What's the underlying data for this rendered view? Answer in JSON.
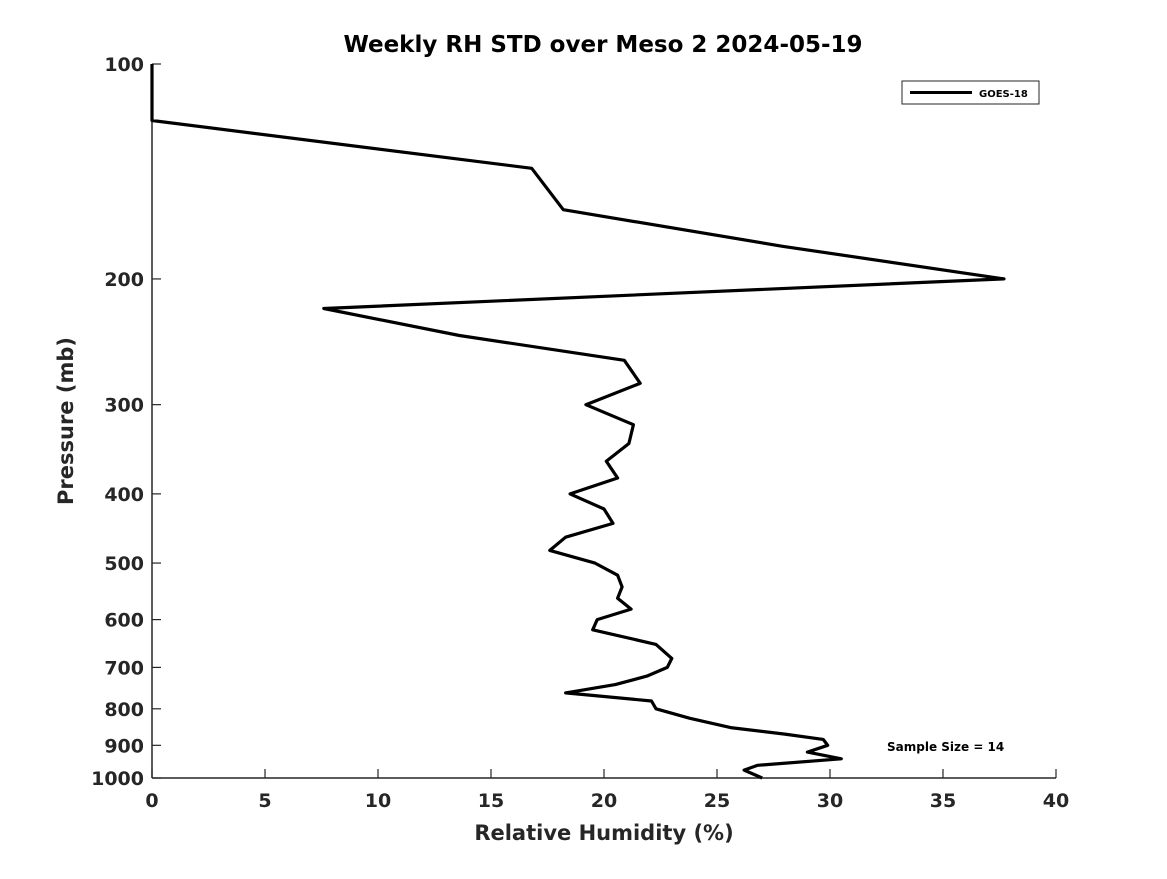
{
  "chart_data": {
    "type": "line",
    "title": "Weekly RH STD over Meso 2 2024-05-19",
    "xlabel": "Relative Humidity (%)",
    "ylabel": "Pressure (mb)",
    "xlim": [
      0,
      40
    ],
    "ylim": [
      100,
      1000
    ],
    "yscale": "log",
    "y_reversed": true,
    "grid": false,
    "xticks": [
      "0",
      "5",
      "10",
      "15",
      "20",
      "25",
      "30",
      "35",
      "40"
    ],
    "yticks": [
      "100",
      "200",
      "300",
      "400",
      "500",
      "600",
      "700",
      "800",
      "900",
      "1000"
    ],
    "legend": {
      "position": "top-right",
      "entries": [
        "GOES-18"
      ]
    },
    "annotation": "Sample Size = 14",
    "series": [
      {
        "name": "GOES-18",
        "color": "#000000",
        "points": [
          [
            0,
            100
          ],
          [
            0,
            120
          ],
          [
            16.8,
            140
          ],
          [
            18.2,
            160
          ],
          [
            27.9,
            180
          ],
          [
            37.7,
            200
          ],
          [
            7.6,
            220
          ],
          [
            13.6,
            240
          ],
          [
            20.9,
            260
          ],
          [
            21.6,
            280
          ],
          [
            19.2,
            300
          ],
          [
            21.3,
            320
          ],
          [
            21.1,
            340
          ],
          [
            20.1,
            360
          ],
          [
            20.6,
            380
          ],
          [
            18.5,
            400
          ],
          [
            20.0,
            420
          ],
          [
            20.4,
            440
          ],
          [
            18.3,
            460
          ],
          [
            17.6,
            480
          ],
          [
            19.6,
            500
          ],
          [
            20.6,
            520
          ],
          [
            20.8,
            540
          ],
          [
            20.6,
            560
          ],
          [
            21.2,
            580
          ],
          [
            19.7,
            600
          ],
          [
            19.5,
            620
          ],
          [
            22.3,
            650
          ],
          [
            23.0,
            680
          ],
          [
            22.8,
            700
          ],
          [
            21.9,
            720
          ],
          [
            20.5,
            740
          ],
          [
            18.3,
            760
          ],
          [
            22.1,
            780
          ],
          [
            22.3,
            800
          ],
          [
            23.8,
            825
          ],
          [
            25.6,
            850
          ],
          [
            28.0,
            868
          ],
          [
            29.7,
            883
          ],
          [
            29.9,
            900
          ],
          [
            29.0,
            920
          ],
          [
            30.5,
            940
          ],
          [
            26.8,
            960
          ],
          [
            26.2,
            975
          ],
          [
            27.0,
            1000
          ]
        ]
      }
    ]
  }
}
